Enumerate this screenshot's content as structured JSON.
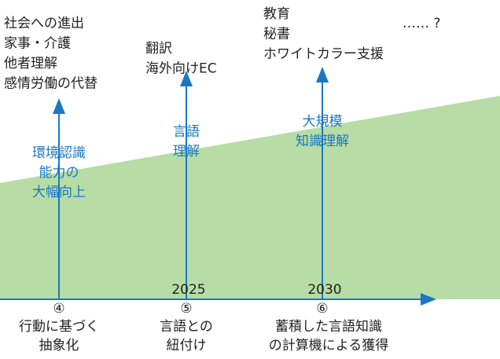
{
  "milestones": [
    {
      "number": "④",
      "label": [
        "行動に基づく",
        "抽象化"
      ],
      "capability": [
        "環境認識",
        "能力の",
        "大幅向上"
      ],
      "applications": [
        "社会への進出",
        "家事・介護",
        "他者理解",
        "感情労働の代替"
      ]
    },
    {
      "number": "⑤",
      "label": [
        "言語との",
        "紐付け"
      ],
      "capability": [
        "言語",
        "理解"
      ],
      "applications": [
        "翻訳",
        "海外向けEC"
      ],
      "year": "2025"
    },
    {
      "number": "⑥",
      "label": [
        "蓄積した言語知識",
        "の計算機による獲得"
      ],
      "capability": [
        "大規模",
        "知識理解"
      ],
      "applications": [
        "教育",
        "秘書",
        "ホワイトカラー支援"
      ],
      "year": "2030"
    }
  ],
  "continuation": "…… ?"
}
